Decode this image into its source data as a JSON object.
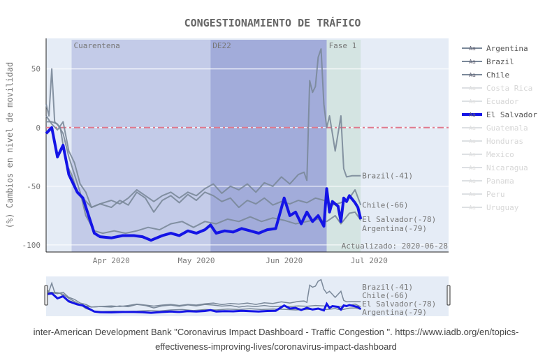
{
  "chart_data": {
    "type": "line",
    "title": "CONGESTIONAMIENTO DE TRÁFICO",
    "ylabel": "(%) Cambios en nivel de movilidad",
    "xlabel": "",
    "ylim": [
      -106,
      76
    ],
    "xlim": [
      "2020-03-09",
      "2020-07-29"
    ],
    "yticks": [
      50,
      0,
      -50,
      -100
    ],
    "xticks": [
      {
        "date": "2020-04-01",
        "label": "Apr 2020"
      },
      {
        "date": "2020-05-01",
        "label": "May 2020"
      },
      {
        "date": "2020-06-01",
        "label": "Jun 2020"
      },
      {
        "date": "2020-07-01",
        "label": "Jul 2020"
      }
    ],
    "grid": true,
    "reference_line": {
      "value": 0,
      "style": "dash-dot",
      "color": "#e0788c"
    },
    "periods": [
      {
        "label": "Cuarentena",
        "start": "2020-03-18",
        "end": "2020-05-06",
        "color": "#c3cbe8"
      },
      {
        "label": "DE22",
        "start": "2020-05-06",
        "end": "2020-06-16",
        "color": "#a2acda"
      },
      {
        "label": "Fase 1",
        "start": "2020-06-16",
        "end": "2020-06-28",
        "color": "#d4e4e2"
      }
    ],
    "annotation": "Actualizado: 2020-06-28",
    "legend_position": "right",
    "series": [
      {
        "name": "Argentina",
        "visible": true,
        "color": "#7a8899",
        "end_label": "Argentina(-79)",
        "points": [
          [
            "2020-03-09",
            5
          ],
          [
            "2020-03-11",
            5
          ],
          [
            "2020-03-13",
            3
          ],
          [
            "2020-03-15",
            -5
          ],
          [
            "2020-03-17",
            -25
          ],
          [
            "2020-03-19",
            -40
          ],
          [
            "2020-03-21",
            -55
          ],
          [
            "2020-03-23",
            -75
          ],
          [
            "2020-03-26",
            -88
          ],
          [
            "2020-03-29",
            -90
          ],
          [
            "2020-04-02",
            -88
          ],
          [
            "2020-04-06",
            -90
          ],
          [
            "2020-04-10",
            -88
          ],
          [
            "2020-04-14",
            -85
          ],
          [
            "2020-04-18",
            -87
          ],
          [
            "2020-04-22",
            -82
          ],
          [
            "2020-04-26",
            -80
          ],
          [
            "2020-04-30",
            -85
          ],
          [
            "2020-05-04",
            -80
          ],
          [
            "2020-05-08",
            -82
          ],
          [
            "2020-05-12",
            -78
          ],
          [
            "2020-05-16",
            -80
          ],
          [
            "2020-05-20",
            -76
          ],
          [
            "2020-05-24",
            -80
          ],
          [
            "2020-05-28",
            -77
          ],
          [
            "2020-06-01",
            -79
          ],
          [
            "2020-06-05",
            -82
          ],
          [
            "2020-06-09",
            -80
          ],
          [
            "2020-06-13",
            -78
          ],
          [
            "2020-06-16",
            -80
          ],
          [
            "2020-06-19",
            -75
          ],
          [
            "2020-06-21",
            -82
          ],
          [
            "2020-06-24",
            -73
          ],
          [
            "2020-06-26",
            -72
          ],
          [
            "2020-06-28",
            -79
          ]
        ]
      },
      {
        "name": "Brazil",
        "visible": true,
        "color": "#7a8899",
        "end_label": "Brazil(-41)",
        "points": [
          [
            "2020-03-09",
            20
          ],
          [
            "2020-03-10",
            10
          ],
          [
            "2020-03-11",
            50
          ],
          [
            "2020-03-12",
            5
          ],
          [
            "2020-03-14",
            0
          ],
          [
            "2020-03-16",
            -30
          ],
          [
            "2020-03-18",
            -40
          ],
          [
            "2020-03-20",
            -55
          ],
          [
            "2020-03-22",
            -60
          ],
          [
            "2020-03-25",
            -68
          ],
          [
            "2020-03-28",
            -65
          ],
          [
            "2020-04-01",
            -62
          ],
          [
            "2020-04-04",
            -65
          ],
          [
            "2020-04-07",
            -60
          ],
          [
            "2020-04-10",
            -53
          ],
          [
            "2020-04-13",
            -58
          ],
          [
            "2020-04-16",
            -63
          ],
          [
            "2020-04-19",
            -58
          ],
          [
            "2020-04-22",
            -55
          ],
          [
            "2020-04-25",
            -60
          ],
          [
            "2020-04-28",
            -55
          ],
          [
            "2020-05-01",
            -58
          ],
          [
            "2020-05-04",
            -52
          ],
          [
            "2020-05-07",
            -48
          ],
          [
            "2020-05-10",
            -56
          ],
          [
            "2020-05-13",
            -50
          ],
          [
            "2020-05-16",
            -53
          ],
          [
            "2020-05-19",
            -48
          ],
          [
            "2020-05-22",
            -55
          ],
          [
            "2020-05-25",
            -47
          ],
          [
            "2020-05-28",
            -50
          ],
          [
            "2020-05-31",
            -42
          ],
          [
            "2020-06-03",
            -48
          ],
          [
            "2020-06-06",
            -40
          ],
          [
            "2020-06-08",
            -38
          ],
          [
            "2020-06-09",
            -45
          ],
          [
            "2020-06-10",
            40
          ],
          [
            "2020-06-11",
            30
          ],
          [
            "2020-06-12",
            35
          ],
          [
            "2020-06-13",
            60
          ],
          [
            "2020-06-14",
            67
          ],
          [
            "2020-06-15",
            20
          ],
          [
            "2020-06-16",
            0
          ],
          [
            "2020-06-17",
            10
          ],
          [
            "2020-06-18",
            -5
          ],
          [
            "2020-06-19",
            -20
          ],
          [
            "2020-06-20",
            -5
          ],
          [
            "2020-06-21",
            10
          ],
          [
            "2020-06-22",
            -35
          ],
          [
            "2020-06-23",
            -42
          ],
          [
            "2020-06-25",
            -41
          ],
          [
            "2020-06-28",
            -41
          ]
        ]
      },
      {
        "name": "Chile",
        "visible": true,
        "color": "#7a8899",
        "end_label": "Chile(-66)",
        "points": [
          [
            "2020-03-09",
            10
          ],
          [
            "2020-03-11",
            3
          ],
          [
            "2020-03-13",
            -2
          ],
          [
            "2020-03-15",
            5
          ],
          [
            "2020-03-17",
            -20
          ],
          [
            "2020-03-19",
            -30
          ],
          [
            "2020-03-21",
            -48
          ],
          [
            "2020-03-23",
            -55
          ],
          [
            "2020-03-25",
            -68
          ],
          [
            "2020-03-28",
            -65
          ],
          [
            "2020-04-01",
            -68
          ],
          [
            "2020-04-04",
            -62
          ],
          [
            "2020-04-07",
            -66
          ],
          [
            "2020-04-10",
            -55
          ],
          [
            "2020-04-13",
            -60
          ],
          [
            "2020-04-16",
            -72
          ],
          [
            "2020-04-19",
            -62
          ],
          [
            "2020-04-22",
            -58
          ],
          [
            "2020-04-25",
            -64
          ],
          [
            "2020-04-28",
            -57
          ],
          [
            "2020-05-01",
            -62
          ],
          [
            "2020-05-04",
            -55
          ],
          [
            "2020-05-07",
            -58
          ],
          [
            "2020-05-10",
            -63
          ],
          [
            "2020-05-13",
            -60
          ],
          [
            "2020-05-16",
            -68
          ],
          [
            "2020-05-19",
            -62
          ],
          [
            "2020-05-22",
            -65
          ],
          [
            "2020-05-25",
            -60
          ],
          [
            "2020-05-28",
            -66
          ],
          [
            "2020-05-31",
            -63
          ],
          [
            "2020-06-03",
            -65
          ],
          [
            "2020-06-06",
            -62
          ],
          [
            "2020-06-09",
            -64
          ],
          [
            "2020-06-12",
            -60
          ],
          [
            "2020-06-15",
            -62
          ],
          [
            "2020-06-18",
            -66
          ],
          [
            "2020-06-21",
            -64
          ],
          [
            "2020-06-24",
            -60
          ],
          [
            "2020-06-26",
            -53
          ],
          [
            "2020-06-28",
            -66
          ]
        ]
      },
      {
        "name": "Costa Rica",
        "visible": false,
        "color": "#c8ccd2"
      },
      {
        "name": "Ecuador",
        "visible": false,
        "color": "#c8ccd2"
      },
      {
        "name": "El Salvador",
        "visible": true,
        "color": "#1414e6",
        "end_label": "El Salvador(-78)",
        "points": [
          [
            "2020-03-09",
            -5
          ],
          [
            "2020-03-11",
            0
          ],
          [
            "2020-03-13",
            -25
          ],
          [
            "2020-03-15",
            -15
          ],
          [
            "2020-03-17",
            -40
          ],
          [
            "2020-03-20",
            -55
          ],
          [
            "2020-03-22",
            -60
          ],
          [
            "2020-03-24",
            -75
          ],
          [
            "2020-03-26",
            -90
          ],
          [
            "2020-03-28",
            -93
          ],
          [
            "2020-04-01",
            -94
          ],
          [
            "2020-04-05",
            -92
          ],
          [
            "2020-04-09",
            -92
          ],
          [
            "2020-04-12",
            -93
          ],
          [
            "2020-04-15",
            -96
          ],
          [
            "2020-04-19",
            -92
          ],
          [
            "2020-04-22",
            -90
          ],
          [
            "2020-04-25",
            -92
          ],
          [
            "2020-04-28",
            -88
          ],
          [
            "2020-05-01",
            -90
          ],
          [
            "2020-05-04",
            -87
          ],
          [
            "2020-05-06",
            -83
          ],
          [
            "2020-05-08",
            -90
          ],
          [
            "2020-05-11",
            -88
          ],
          [
            "2020-05-14",
            -89
          ],
          [
            "2020-05-17",
            -86
          ],
          [
            "2020-05-20",
            -88
          ],
          [
            "2020-05-23",
            -90
          ],
          [
            "2020-05-26",
            -87
          ],
          [
            "2020-05-29",
            -86
          ],
          [
            "2020-06-01",
            -60
          ],
          [
            "2020-06-03",
            -75
          ],
          [
            "2020-06-05",
            -72
          ],
          [
            "2020-06-07",
            -82
          ],
          [
            "2020-06-09",
            -72
          ],
          [
            "2020-06-11",
            -80
          ],
          [
            "2020-06-13",
            -75
          ],
          [
            "2020-06-15",
            -84
          ],
          [
            "2020-06-16",
            -52
          ],
          [
            "2020-06-17",
            -72
          ],
          [
            "2020-06-18",
            -63
          ],
          [
            "2020-06-20",
            -67
          ],
          [
            "2020-06-21",
            -80
          ],
          [
            "2020-06-22",
            -60
          ],
          [
            "2020-06-23",
            -63
          ],
          [
            "2020-06-24",
            -58
          ],
          [
            "2020-06-26",
            -64
          ],
          [
            "2020-06-27",
            -68
          ],
          [
            "2020-06-28",
            -78
          ]
        ]
      },
      {
        "name": "Guatemala",
        "visible": false,
        "color": "#c8ccd2"
      },
      {
        "name": "Honduras",
        "visible": false,
        "color": "#c8ccd2"
      },
      {
        "name": "Mexico",
        "visible": false,
        "color": "#c8ccd2"
      },
      {
        "name": "Nicaragua",
        "visible": false,
        "color": "#c8ccd2"
      },
      {
        "name": "Panama",
        "visible": false,
        "color": "#c8ccd2"
      },
      {
        "name": "Peru",
        "visible": false,
        "color": "#c8ccd2"
      },
      {
        "name": "Uruguay",
        "visible": false,
        "color": "#c8ccd2"
      }
    ],
    "legend_symbol": "Aa"
  },
  "source": {
    "line1": "inter-American Development Bank \"Coronavirus Impact Dashboard - Traffic Congestion \". https://www.iadb.org/en/topics-",
    "line2": "effectiveness-improving-lives/coronavirus-impact-dashboard"
  }
}
